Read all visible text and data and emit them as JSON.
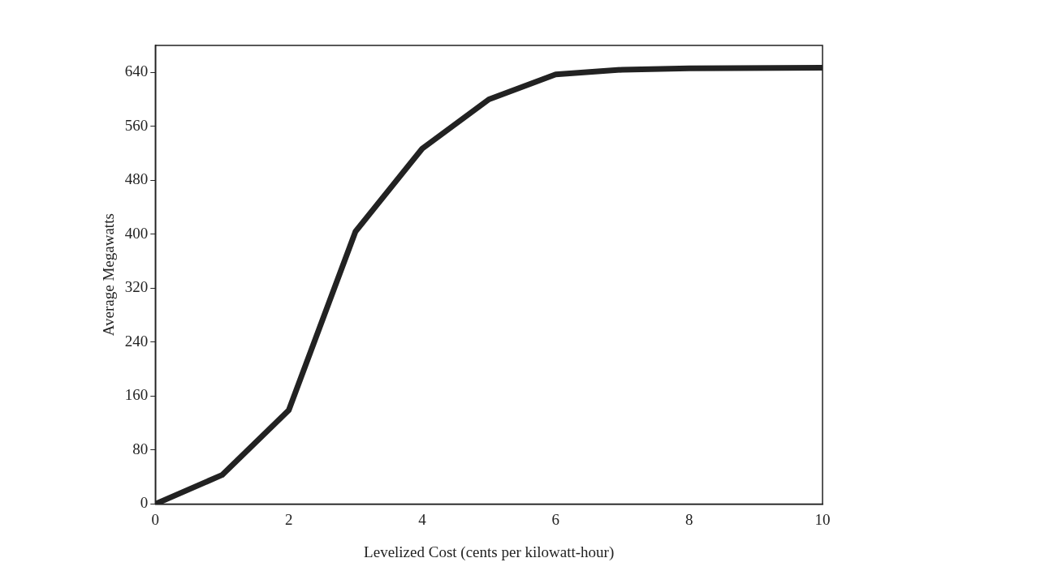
{
  "chart_data": {
    "type": "line",
    "xlabel": "Levelized Cost (cents per kilowatt-hour)",
    "ylabel": "Average Megawatts",
    "x": [
      0,
      1,
      2,
      3,
      4,
      5,
      6,
      7,
      8,
      10
    ],
    "series": [
      {
        "color": "#222222",
        "values": [
          0,
          43,
          139,
          404,
          527,
          600,
          637,
          644,
          646,
          647
        ]
      }
    ],
    "xlim": [
      0,
      10
    ],
    "xticks": [
      0,
      2,
      4,
      6,
      8,
      10
    ],
    "ylim": [
      0,
      680
    ],
    "yticks": [
      0,
      80,
      160,
      240,
      320,
      400,
      480,
      560,
      640
    ],
    "grid": false,
    "legend": false,
    "marker": "none",
    "line_style": "solid"
  }
}
